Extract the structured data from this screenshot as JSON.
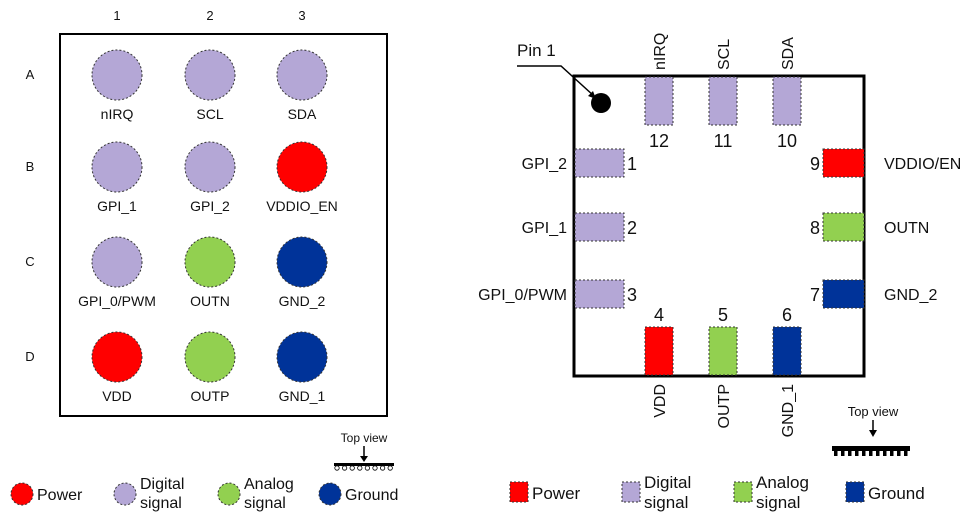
{
  "bga": {
    "columns": [
      "1",
      "2",
      "3"
    ],
    "rows": [
      "A",
      "B",
      "C",
      "D"
    ],
    "balls": [
      {
        "label": "nIRQ",
        "type": "digital"
      },
      {
        "label": "SCL",
        "type": "digital"
      },
      {
        "label": "SDA",
        "type": "digital"
      },
      {
        "label": "GPI_1",
        "type": "digital"
      },
      {
        "label": "GPI_2",
        "type": "digital"
      },
      {
        "label": "VDDIO_EN",
        "type": "power"
      },
      {
        "label": "GPI_0/PWM",
        "type": "digital"
      },
      {
        "label": "OUTN",
        "type": "analog"
      },
      {
        "label": "GND_2",
        "type": "ground"
      },
      {
        "label": "VDD",
        "type": "power"
      },
      {
        "label": "OUTP",
        "type": "analog"
      },
      {
        "label": "GND_1",
        "type": "ground"
      }
    ],
    "top_view_label": "Top view",
    "legend": [
      {
        "type": "power",
        "text": [
          "Power"
        ]
      },
      {
        "type": "digital",
        "text": [
          "Digital",
          "signal"
        ]
      },
      {
        "type": "analog",
        "text": [
          "Analog",
          "signal"
        ]
      },
      {
        "type": "ground",
        "text": [
          "Ground"
        ]
      }
    ]
  },
  "qfn": {
    "pin1_label": "Pin 1",
    "pins": [
      {
        "num": "1",
        "label": "GPI_2",
        "type": "digital"
      },
      {
        "num": "2",
        "label": "GPI_1",
        "type": "digital"
      },
      {
        "num": "3",
        "label": "GPI_0/PWM",
        "type": "digital"
      },
      {
        "num": "4",
        "label": "VDD",
        "type": "power"
      },
      {
        "num": "5",
        "label": "OUTP",
        "type": "analog"
      },
      {
        "num": "6",
        "label": "GND_1",
        "type": "ground"
      },
      {
        "num": "7",
        "label": "GND_2",
        "type": "ground"
      },
      {
        "num": "8",
        "label": "OUTN",
        "type": "analog"
      },
      {
        "num": "9",
        "label": "VDDIO/EN",
        "type": "power"
      },
      {
        "num": "10",
        "label": "SDA",
        "type": "digital"
      },
      {
        "num": "11",
        "label": "SCL",
        "type": "digital"
      },
      {
        "num": "12",
        "label": "nIRQ",
        "type": "digital"
      }
    ],
    "top_view_label": "Top view",
    "legend": [
      {
        "type": "power",
        "text": [
          "Power"
        ]
      },
      {
        "type": "digital",
        "text": [
          "Digital",
          "signal"
        ]
      },
      {
        "type": "analog",
        "text": [
          "Analog",
          "signal"
        ]
      },
      {
        "type": "ground",
        "text": [
          "Ground"
        ]
      }
    ]
  },
  "colors": {
    "power": "#ff0000",
    "digital": "#b4a7d6",
    "analog": "#92d050",
    "ground": "#003399",
    "outline": "#000000"
  }
}
